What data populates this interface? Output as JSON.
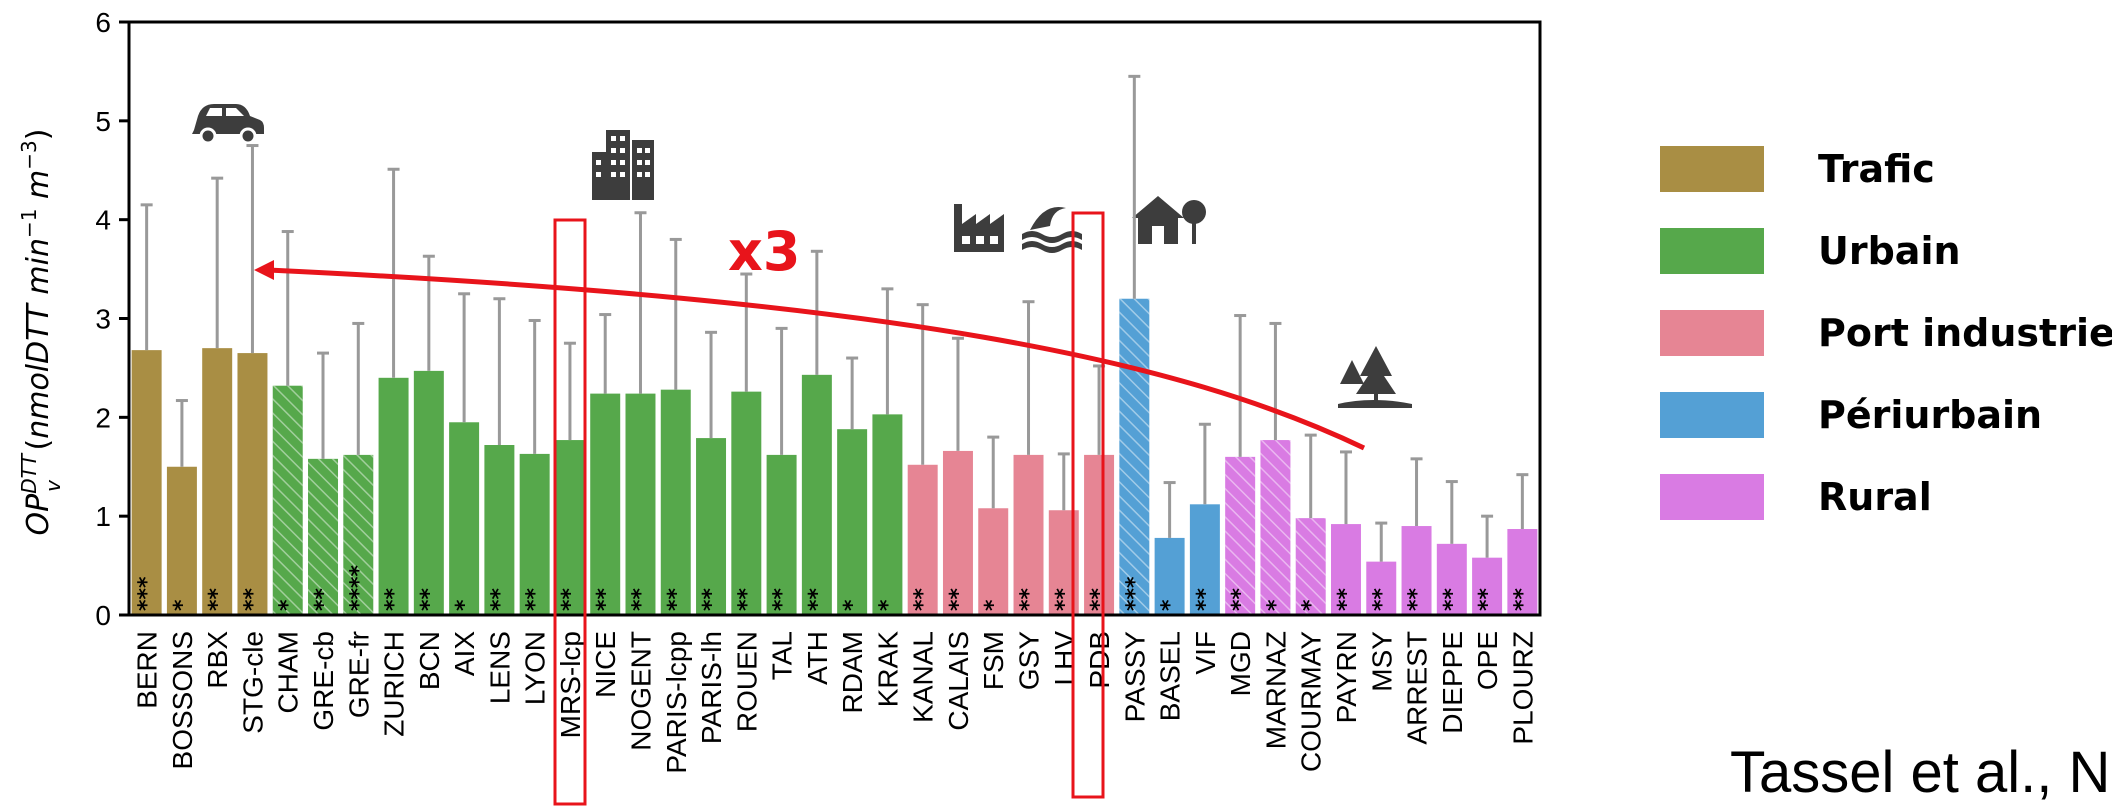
{
  "chart_data": {
    "type": "bar",
    "ylabel": "OP_v^DTT (nmolDTT min^-1 m^-3)",
    "ylim": [
      0,
      6
    ],
    "yticks": [
      0,
      1,
      2,
      3,
      4,
      5,
      6
    ],
    "categories": [
      "BERN",
      "BOSSONS",
      "RBX",
      "STG-cle",
      "CHAM",
      "GRE-cb",
      "GRE-fr",
      "ZURICH",
      "BCN",
      "AIX",
      "LENS",
      "LYON",
      "MRS-lcp",
      "NICE",
      "NOGENT",
      "PARIS-lcpp",
      "PARIS-lh",
      "ROUEN",
      "TAL",
      "ATH",
      "RDAM",
      "KRAK",
      "KANAL",
      "CALAIS",
      "FSM",
      "GSY",
      "LHV",
      "PDB",
      "PASSY",
      "BASEL",
      "VIF",
      "MGD",
      "MARNAZ",
      "COURMAY",
      "PAYRN",
      "MSY",
      "ARREST",
      "DIEPPE",
      "OPE",
      "PLOURZ"
    ],
    "values": [
      2.68,
      1.5,
      2.7,
      2.65,
      2.32,
      1.58,
      1.62,
      2.4,
      2.47,
      1.95,
      1.72,
      1.63,
      1.77,
      2.24,
      2.24,
      2.28,
      1.79,
      2.26,
      1.62,
      2.43,
      1.88,
      2.03,
      1.52,
      1.66,
      1.08,
      1.62,
      1.06,
      1.62,
      3.2,
      0.78,
      1.12,
      1.6,
      1.77,
      0.98,
      0.92,
      0.54,
      0.9,
      0.72,
      0.58,
      0.87
    ],
    "errors": [
      4.15,
      2.17,
      4.42,
      4.75,
      3.88,
      2.65,
      2.95,
      4.51,
      3.63,
      3.25,
      3.2,
      2.98,
      2.75,
      3.04,
      4.07,
      3.8,
      2.86,
      3.45,
      2.9,
      3.68,
      2.6,
      3.3,
      3.14,
      2.8,
      1.8,
      3.17,
      1.63,
      2.52,
      5.45,
      1.34,
      1.93,
      3.03,
      2.95,
      1.82,
      1.65,
      0.93,
      1.58,
      1.35,
      1.0,
      1.42
    ],
    "groups": [
      "Trafic",
      "Trafic",
      "Trafic",
      "Trafic",
      "Urbain",
      "Urbain",
      "Urbain",
      "Urbain",
      "Urbain",
      "Urbain",
      "Urbain",
      "Urbain",
      "Urbain",
      "Urbain",
      "Urbain",
      "Urbain",
      "Urbain",
      "Urbain",
      "Urbain",
      "Urbain",
      "Urbain",
      "Urbain",
      "Port industriel",
      "Port industriel",
      "Port industriel",
      "Port industriel",
      "Port industriel",
      "Port industriel",
      "Périurbain",
      "Périurbain",
      "Périurbain",
      "Rural",
      "Rural",
      "Rural",
      "Rural",
      "Rural",
      "Rural",
      "Rural",
      "Rural",
      "Rural"
    ],
    "hatched": [
      false,
      false,
      false,
      false,
      true,
      true,
      true,
      false,
      false,
      false,
      false,
      false,
      false,
      false,
      false,
      false,
      false,
      false,
      false,
      false,
      false,
      false,
      false,
      false,
      false,
      false,
      false,
      false,
      true,
      false,
      false,
      true,
      true,
      true,
      false,
      false,
      false,
      false,
      false,
      false
    ],
    "significance": [
      "***",
      "*",
      "**",
      "**",
      "*",
      "**",
      "****",
      "**",
      "**",
      "*",
      "**",
      "**",
      "**",
      "**",
      "**",
      "**",
      "**",
      "**",
      "**",
      "**",
      "*",
      "*",
      "**",
      "**",
      "*",
      "**",
      "**",
      "**",
      "***",
      "*",
      "**",
      "**",
      "*",
      "*",
      "**",
      "**",
      "**",
      "**",
      "**",
      "**"
    ],
    "legend": [
      {
        "name": "Trafic",
        "color": "#a98e44"
      },
      {
        "name": "Urbain",
        "color": "#56a84b"
      },
      {
        "name": "Port industriel",
        "color": "#e68594"
      },
      {
        "name": "Périurbain",
        "color": "#54a0d5"
      },
      {
        "name": "Rural",
        "color": "#d97be3"
      }
    ],
    "legend_position": "right",
    "error_bar_color": "#999999",
    "annotation": "x3",
    "highlighted": [
      "MRS-lcp",
      "PDB"
    ],
    "grid": false
  },
  "citation": "Tassel et al., N",
  "icons": [
    "car-icon",
    "buildings-icon",
    "factory-icon",
    "waves-icon",
    "house-icon",
    "trees-icon"
  ],
  "colors": {
    "annotation": "#e8141b"
  }
}
